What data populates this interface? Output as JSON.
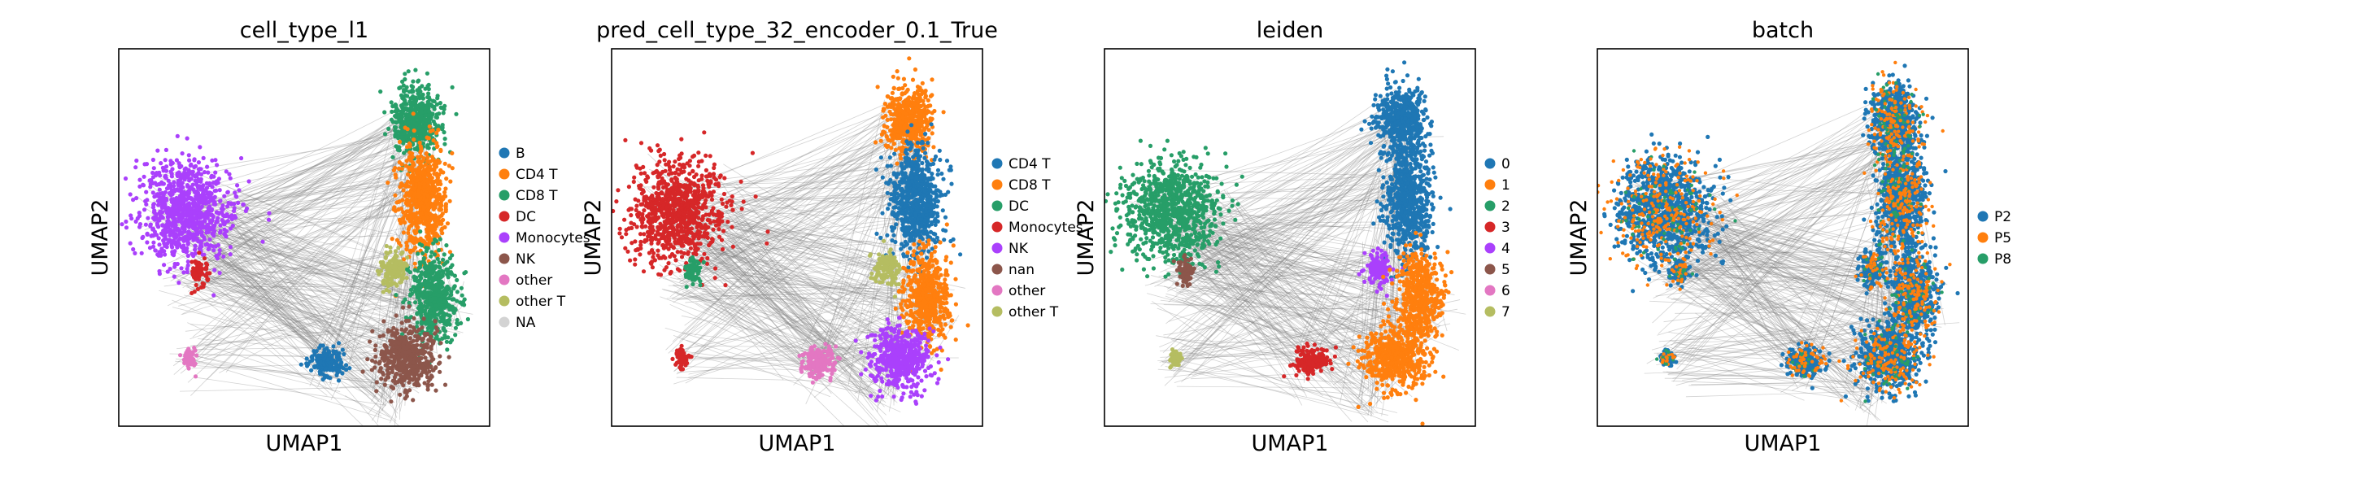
{
  "chart_data": [
    {
      "type": "scatter",
      "title": "cell_type_l1",
      "xlabel": "UMAP1",
      "ylabel": "UMAP2",
      "legend_position": "right",
      "colors": {
        "B": "#1f77b4",
        "CD4 T": "#ff7f0e",
        "CD8 T": "#279e68",
        "DC": "#d62728",
        "Monocytes": "#aa40fc",
        "NK": "#8c564b",
        "other": "#e377c2",
        "other T": "#b5bd61",
        "NA": "#d3d3d3"
      },
      "legend": [
        "B",
        "CD4 T",
        "CD8 T",
        "DC",
        "Monocytes",
        "NK",
        "other",
        "other T",
        "NA"
      ],
      "clusters": [
        {
          "label": "CD8 T",
          "shape": "top",
          "color": "#279e68"
        },
        {
          "label": "CD4 T",
          "shape": "right",
          "color": "#ff7f0e"
        },
        {
          "label": "CD8 T",
          "shape": "right-lower",
          "color": "#279e68"
        },
        {
          "label": "other T",
          "shape": "mid",
          "color": "#b5bd61"
        },
        {
          "label": "NK",
          "shape": "bottom-right",
          "color": "#8c564b"
        },
        {
          "label": "Monocytes",
          "shape": "left",
          "color": "#aa40fc"
        },
        {
          "label": "DC",
          "shape": "left-spot",
          "color": "#d62728"
        },
        {
          "label": "B",
          "shape": "bottom-mid",
          "color": "#1f77b4"
        },
        {
          "label": "other",
          "shape": "bottom-left",
          "color": "#e377c2"
        }
      ]
    },
    {
      "type": "scatter",
      "title": "pred_cell_type_32_encoder_0.1_True",
      "xlabel": "UMAP1",
      "ylabel": "UMAP2",
      "legend_position": "right",
      "colors": {
        "CD4 T": "#1f77b4",
        "CD8 T": "#ff7f0e",
        "DC": "#279e68",
        "Monocytes": "#d62728",
        "NK": "#aa40fc",
        "nan": "#8c564b",
        "other": "#e377c2",
        "other T": "#b5bd61"
      },
      "legend": [
        "CD4 T",
        "CD8 T",
        "DC",
        "Monocytes",
        "NK",
        "nan",
        "other",
        "other T"
      ],
      "clusters": [
        {
          "label": "CD8 T",
          "shape": "top",
          "color": "#ff7f0e"
        },
        {
          "label": "CD4 T",
          "shape": "right",
          "color": "#1f77b4"
        },
        {
          "label": "CD8 T",
          "shape": "right-lower",
          "color": "#ff7f0e"
        },
        {
          "label": "other T",
          "shape": "mid",
          "color": "#b5bd61"
        },
        {
          "label": "NK",
          "shape": "bottom-right",
          "color": "#aa40fc"
        },
        {
          "label": "Monocytes",
          "shape": "left",
          "color": "#d62728"
        },
        {
          "label": "DC",
          "shape": "left-spot",
          "color": "#279e68"
        },
        {
          "label": "other",
          "shape": "bottom-mid",
          "color": "#e377c2"
        },
        {
          "label": "Monocytes",
          "shape": "bottom-left",
          "color": "#d62728"
        }
      ]
    },
    {
      "type": "scatter",
      "title": "leiden",
      "xlabel": "UMAP1",
      "ylabel": "UMAP2",
      "legend_position": "right",
      "colors": {
        "0": "#1f77b4",
        "1": "#ff7f0e",
        "2": "#279e68",
        "3": "#d62728",
        "4": "#aa40fc",
        "5": "#8c564b",
        "6": "#e377c2",
        "7": "#b5bd61"
      },
      "legend": [
        "0",
        "1",
        "2",
        "3",
        "4",
        "5",
        "6",
        "7"
      ],
      "clusters": [
        {
          "label": "0",
          "shape": "top",
          "color": "#1f77b4"
        },
        {
          "label": "0",
          "shape": "right",
          "color": "#1f77b4"
        },
        {
          "label": "4",
          "shape": "mid",
          "color": "#aa40fc"
        },
        {
          "label": "1",
          "shape": "right-lower",
          "color": "#ff7f0e"
        },
        {
          "label": "1",
          "shape": "bottom-right",
          "color": "#ff7f0e"
        },
        {
          "label": "2",
          "shape": "left",
          "color": "#279e68"
        },
        {
          "label": "5",
          "shape": "left-spot",
          "color": "#8c564b"
        },
        {
          "label": "3",
          "shape": "bottom-mid",
          "color": "#d62728"
        },
        {
          "label": "7",
          "shape": "bottom-left",
          "color": "#b5bd61"
        }
      ]
    },
    {
      "type": "scatter",
      "title": "batch",
      "xlabel": "UMAP1",
      "ylabel": "UMAP2",
      "legend_position": "right",
      "colors": {
        "P2": "#1f77b4",
        "P5": "#ff7f0e",
        "P8": "#279e68"
      },
      "legend": [
        "P2",
        "P5",
        "P8"
      ],
      "clusters": [
        {
          "label": "P2",
          "shape": "top",
          "color": "#1f77b4"
        },
        {
          "label": "P2",
          "shape": "right",
          "color": "#1f77b4"
        },
        {
          "label": "P2",
          "shape": "right-lower",
          "color": "#1f77b4"
        },
        {
          "label": "P2",
          "shape": "mid",
          "color": "#1f77b4"
        },
        {
          "label": "P2",
          "shape": "bottom-right",
          "color": "#1f77b4"
        },
        {
          "label": "P2",
          "shape": "left",
          "color": "#1f77b4"
        },
        {
          "label": "P2",
          "shape": "left-spot",
          "color": "#1f77b4"
        },
        {
          "label": "P2",
          "shape": "bottom-mid",
          "color": "#1f77b4"
        },
        {
          "label": "P2",
          "shape": "bottom-left",
          "color": "#1f77b4"
        }
      ]
    }
  ]
}
